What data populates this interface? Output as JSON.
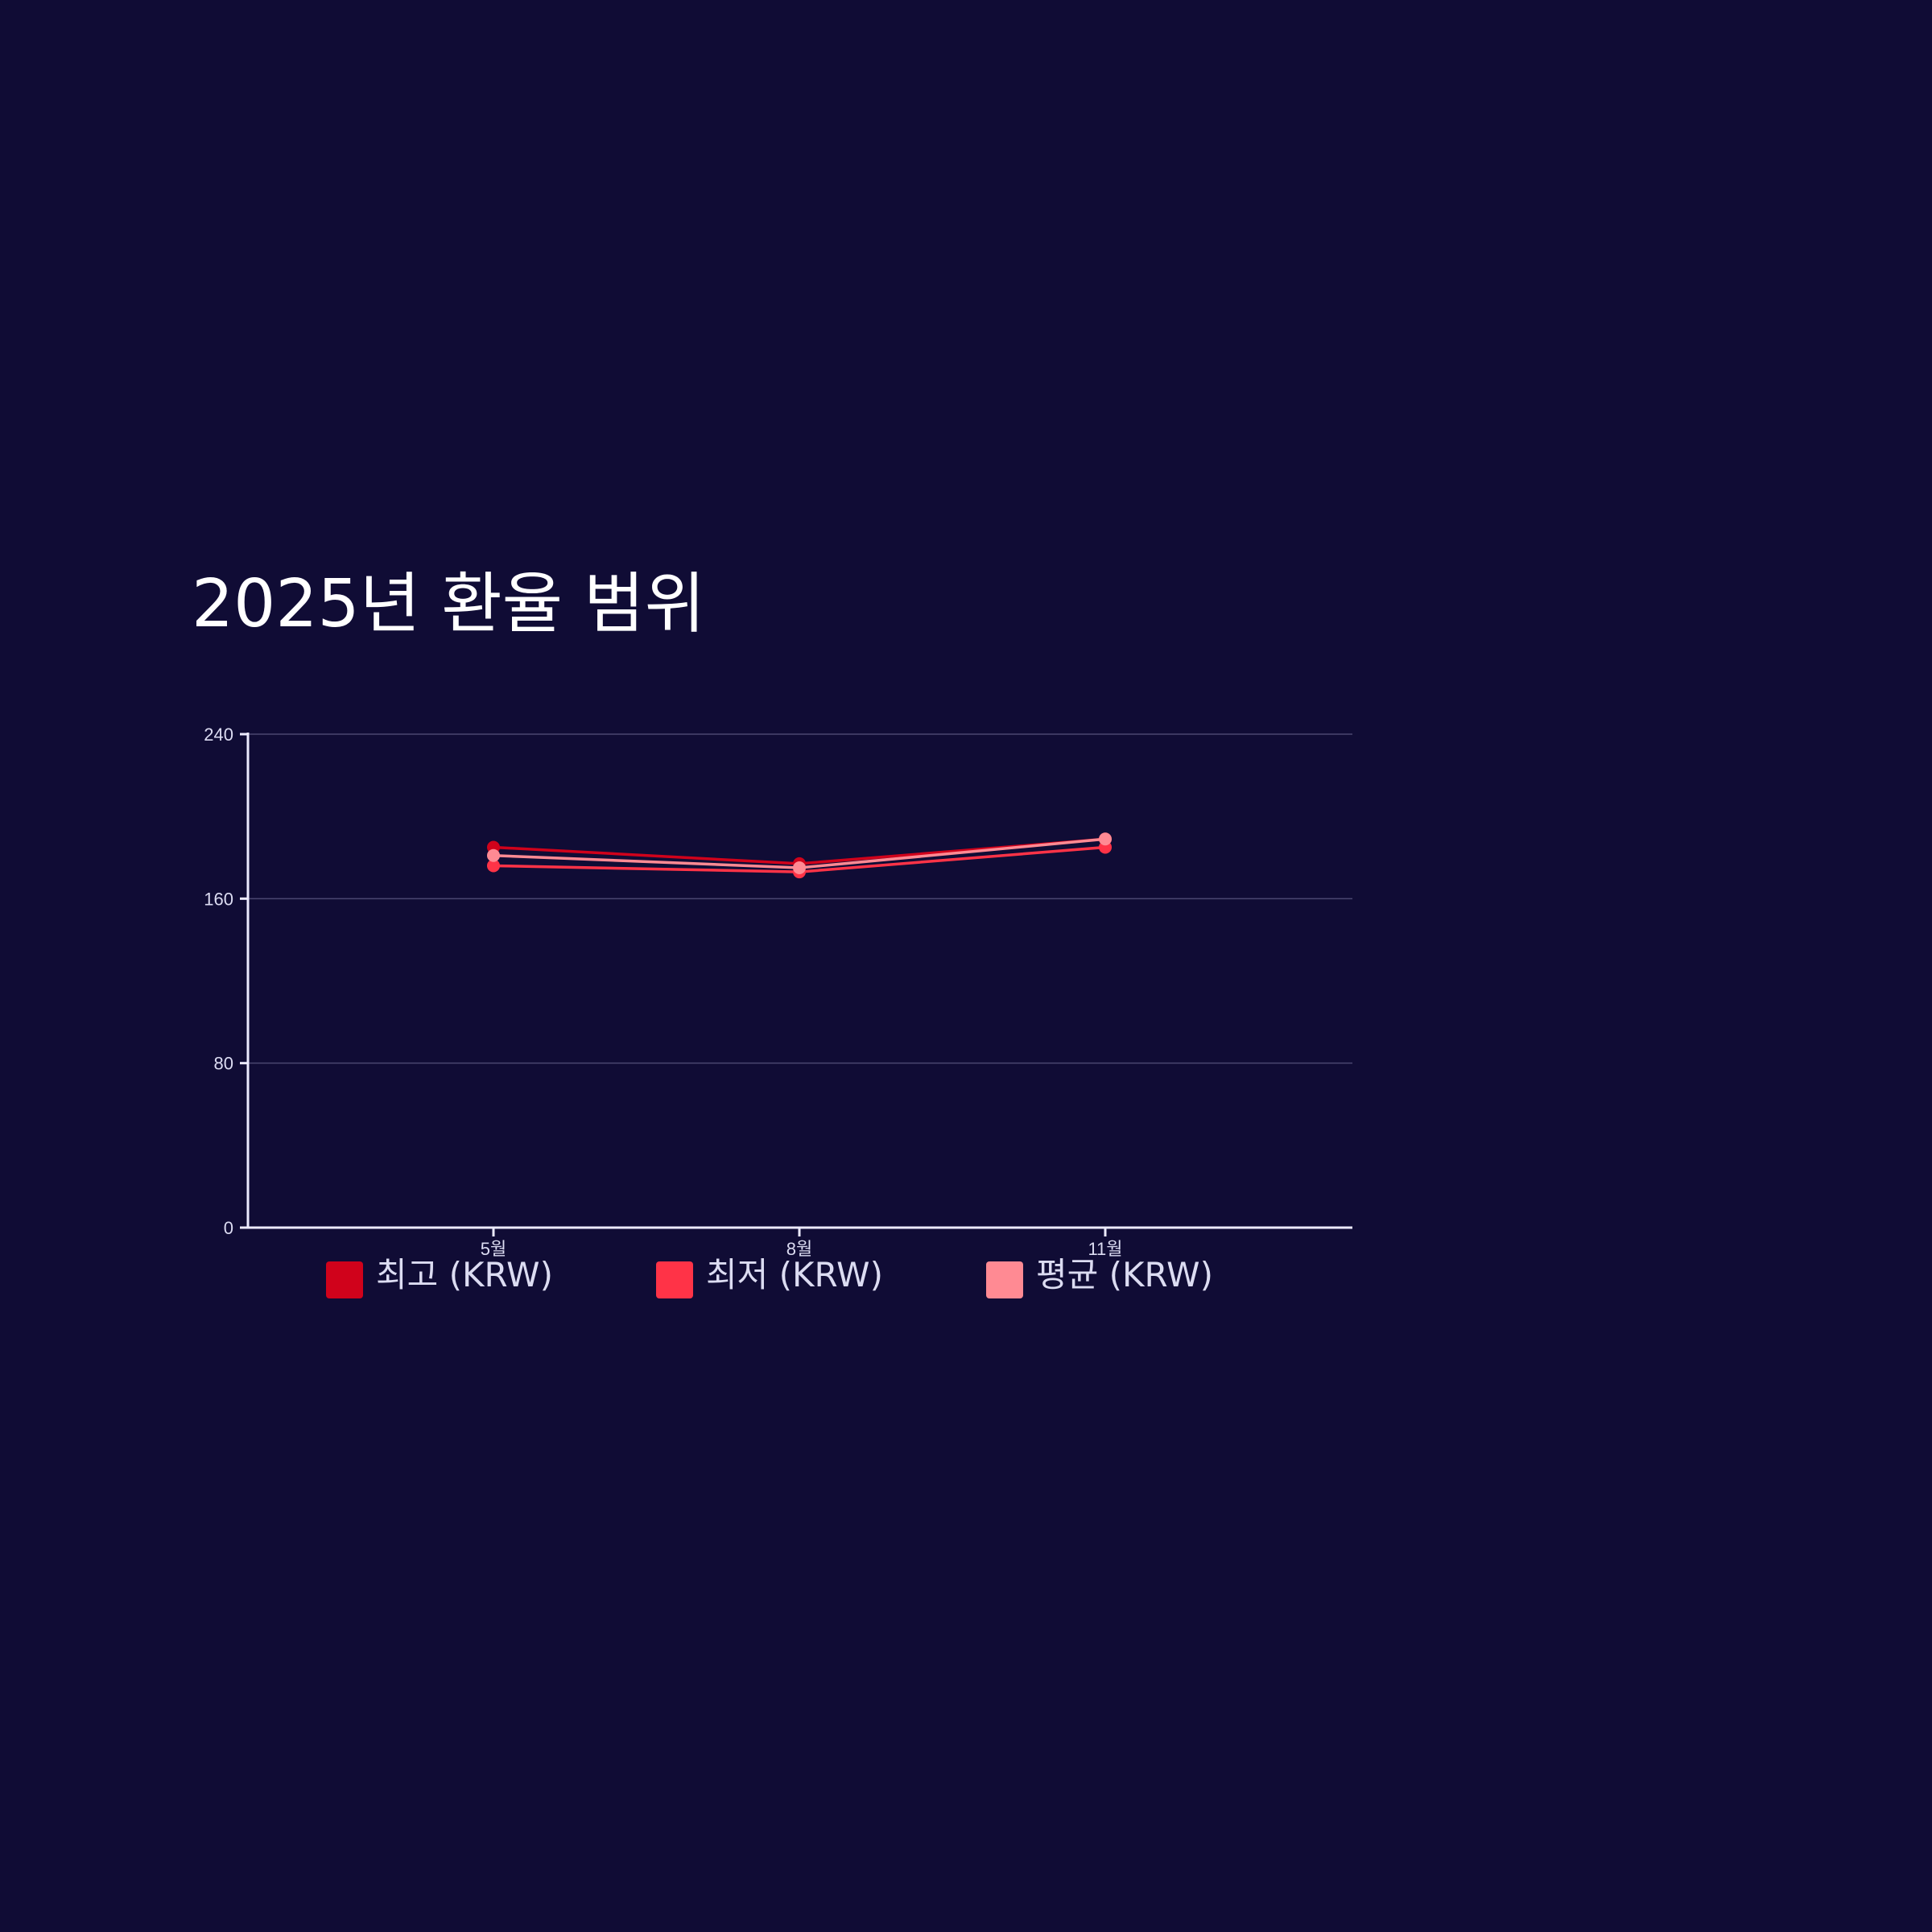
{
  "chart_data": {
    "type": "line",
    "title": "2025년 환율 범위",
    "xlabel": "",
    "ylabel": "",
    "categories": [
      "5월",
      "8월",
      "11월"
    ],
    "ylim": [
      0,
      240
    ],
    "yticks": [
      0,
      80,
      160,
      240
    ],
    "grid": true,
    "legend_position": "bottom",
    "series": [
      {
        "name": "최고 (KRW)",
        "color": "#d0021b",
        "values": [
          185,
          177,
          189
        ]
      },
      {
        "name": "최저 (KRW)",
        "color": "#ff3347",
        "values": [
          176,
          173,
          185
        ]
      },
      {
        "name": "평균 (KRW)",
        "color": "#ff8a93",
        "values": [
          181,
          175,
          189
        ]
      }
    ],
    "colors": {
      "background": "#100c35",
      "axis": "#eceaff",
      "grid": "#4a4770",
      "text": "#dcdcf2",
      "title": "#ffffff"
    }
  }
}
